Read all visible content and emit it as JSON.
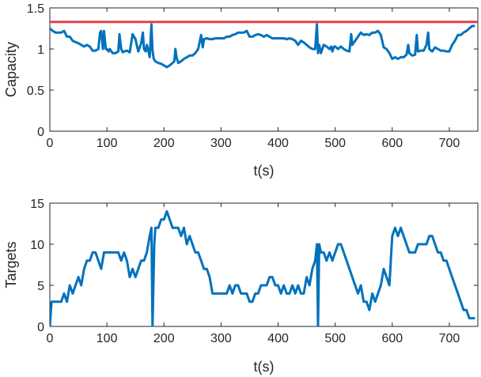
{
  "chart_data": [
    {
      "type": "line",
      "xlabel": "t(s)",
      "ylabel": "Capacity",
      "xlim": [
        0,
        750
      ],
      "ylim": [
        0,
        1.5
      ],
      "xticks": [
        0,
        100,
        200,
        300,
        400,
        500,
        600,
        700
      ],
      "yticks": [
        0,
        0.5,
        1,
        1.5
      ],
      "ytick_labels": [
        "0",
        "0.5",
        "1",
        "1.5"
      ],
      "grid": false,
      "series": [
        {
          "color": "#0072BD",
          "x": [
            0,
            5,
            10,
            20,
            25,
            30,
            35,
            40,
            50,
            55,
            60,
            65,
            70,
            75,
            80,
            85,
            88,
            90,
            93,
            95,
            98,
            100,
            103,
            105,
            110,
            115,
            120,
            122,
            125,
            128,
            130,
            135,
            140,
            145,
            150,
            155,
            160,
            163,
            165,
            168,
            170,
            173,
            175,
            178,
            180,
            182,
            185,
            190,
            195,
            200,
            205,
            210,
            215,
            218,
            220,
            222,
            225,
            230,
            235,
            240,
            245,
            250,
            255,
            260,
            265,
            268,
            270,
            275,
            280,
            285,
            290,
            295,
            300,
            305,
            310,
            315,
            320,
            325,
            330,
            335,
            340,
            345,
            350,
            355,
            360,
            365,
            370,
            375,
            380,
            385,
            390,
            395,
            400,
            405,
            410,
            415,
            420,
            425,
            430,
            435,
            440,
            445,
            450,
            455,
            460,
            465,
            468,
            470,
            472,
            475,
            480,
            485,
            490,
            493,
            495,
            498,
            500,
            505,
            510,
            515,
            520,
            525,
            528,
            530,
            535,
            540,
            545,
            550,
            555,
            560,
            565,
            570,
            575,
            580,
            585,
            590,
            595,
            600,
            605,
            610,
            615,
            620,
            625,
            628,
            630,
            635,
            640,
            643,
            645,
            650,
            655,
            660,
            663,
            665,
            670,
            675,
            680,
            685,
            690,
            695,
            700,
            705,
            710,
            715,
            720,
            725,
            730,
            735,
            740,
            745
          ],
          "y": [
            1.25,
            1.22,
            1.2,
            1.2,
            1.22,
            1.15,
            1.15,
            1.1,
            1.07,
            1.05,
            1.03,
            1.05,
            1.03,
            0.98,
            0.98,
            1.0,
            1.2,
            1.22,
            1.0,
            1.22,
            1.0,
            1.0,
            0.97,
            1.0,
            0.95,
            0.95,
            0.97,
            1.18,
            1.0,
            0.96,
            0.97,
            0.98,
            0.96,
            1.18,
            1.12,
            0.97,
            1.07,
            1.2,
            1.0,
            0.97,
            1.05,
            0.97,
            0.9,
            1.3,
            0.98,
            0.88,
            0.85,
            0.83,
            0.82,
            0.8,
            0.78,
            0.8,
            0.83,
            0.85,
            1.0,
            0.9,
            0.83,
            0.85,
            0.88,
            0.9,
            0.92,
            0.92,
            0.95,
            1.0,
            1.17,
            1.02,
            1.12,
            1.13,
            1.12,
            1.12,
            1.13,
            1.13,
            1.13,
            1.13,
            1.15,
            1.15,
            1.17,
            1.18,
            1.2,
            1.2,
            1.2,
            1.22,
            1.15,
            1.15,
            1.17,
            1.18,
            1.17,
            1.15,
            1.17,
            1.15,
            1.13,
            1.13,
            1.13,
            1.13,
            1.13,
            1.12,
            1.13,
            1.12,
            1.1,
            1.05,
            1.1,
            1.08,
            1.05,
            1.02,
            1.0,
            1.0,
            1.3,
            0.95,
            1.05,
            0.95,
            1.05,
            1.03,
            1.0,
            1.03,
            0.97,
            1.03,
            1.03,
            1.0,
            1.03,
            1.0,
            0.98,
            0.97,
            1.18,
            1.05,
            1.1,
            1.15,
            1.2,
            1.17,
            1.18,
            1.17,
            1.2,
            1.2,
            1.22,
            1.17,
            1.02,
            1.0,
            0.95,
            0.88,
            0.9,
            0.88,
            0.9,
            0.9,
            0.93,
            1.05,
            0.95,
            0.92,
            0.93,
            1.17,
            0.97,
            0.98,
            0.98,
            1.05,
            1.2,
            1.0,
            0.97,
            1.02,
            1.0,
            0.98,
            0.98,
            0.97,
            0.97,
            1.05,
            1.1,
            1.17,
            1.17,
            1.2,
            1.22,
            1.25,
            1.28,
            1.28
          ]
        },
        {
          "color": "#E0404A",
          "x": [
            0,
            750
          ],
          "y": [
            1.33,
            1.33
          ]
        }
      ]
    },
    {
      "type": "line",
      "xlabel": "t(s)",
      "ylabel": "Targets",
      "xlim": [
        0,
        750
      ],
      "ylim": [
        0,
        15
      ],
      "xticks": [
        0,
        100,
        200,
        300,
        400,
        500,
        600,
        700
      ],
      "yticks": [
        0,
        5,
        10,
        15
      ],
      "ytick_labels": [
        "0",
        "5",
        "10",
        "15"
      ],
      "grid": false,
      "series": [
        {
          "color": "#0072BD",
          "x": [
            0,
            3,
            5,
            10,
            15,
            20,
            25,
            30,
            35,
            40,
            45,
            50,
            55,
            60,
            65,
            70,
            75,
            80,
            85,
            90,
            95,
            100,
            105,
            110,
            115,
            120,
            125,
            130,
            135,
            140,
            145,
            150,
            155,
            160,
            165,
            170,
            175,
            178,
            180,
            183,
            185,
            190,
            195,
            200,
            205,
            210,
            215,
            220,
            225,
            230,
            235,
            240,
            245,
            250,
            255,
            260,
            265,
            270,
            275,
            280,
            285,
            290,
            295,
            300,
            305,
            310,
            315,
            320,
            325,
            330,
            335,
            340,
            345,
            350,
            355,
            360,
            365,
            370,
            375,
            380,
            385,
            390,
            395,
            400,
            405,
            410,
            415,
            420,
            425,
            430,
            435,
            440,
            445,
            450,
            455,
            460,
            465,
            468,
            470,
            472,
            475,
            480,
            485,
            490,
            495,
            500,
            505,
            510,
            515,
            520,
            525,
            530,
            535,
            540,
            545,
            550,
            555,
            560,
            565,
            570,
            575,
            580,
            585,
            590,
            595,
            600,
            605,
            610,
            615,
            620,
            625,
            630,
            635,
            640,
            645,
            650,
            655,
            660,
            665,
            670,
            675,
            680,
            685,
            690,
            695,
            700,
            705,
            710,
            715,
            720,
            725,
            730,
            735,
            740,
            745
          ],
          "y": [
            0,
            3,
            3,
            3,
            3,
            3,
            4,
            3,
            5,
            4,
            5,
            6,
            5,
            7,
            8,
            8,
            9,
            9,
            8,
            7,
            9,
            9,
            9,
            9,
            9,
            9,
            8,
            9,
            8,
            6,
            7,
            6,
            7,
            8,
            8,
            9,
            11,
            12,
            0,
            10,
            12,
            12,
            13,
            13,
            14,
            13,
            12,
            12,
            12,
            11,
            12,
            10,
            11,
            10,
            9,
            9,
            8,
            7,
            7,
            6,
            4,
            4,
            4,
            4,
            4,
            4,
            5,
            4,
            5,
            5,
            4,
            4,
            4,
            3,
            3,
            4,
            4,
            5,
            5,
            5,
            6,
            6,
            5,
            5,
            4,
            5,
            4,
            4,
            5,
            4,
            5,
            4,
            4,
            6,
            5,
            7,
            8,
            10,
            0,
            10,
            9,
            9,
            8,
            9,
            8,
            9,
            10,
            10,
            9,
            8,
            7,
            6,
            5,
            4,
            5,
            3,
            3,
            2,
            4,
            3,
            4,
            5,
            7,
            6,
            5,
            11,
            12,
            11,
            12,
            11,
            10,
            9,
            9,
            9,
            10,
            10,
            10,
            10,
            11,
            11,
            10,
            9,
            9,
            8,
            8,
            7,
            6,
            5,
            4,
            3,
            2,
            2,
            1,
            1,
            1
          ]
        }
      ]
    }
  ]
}
